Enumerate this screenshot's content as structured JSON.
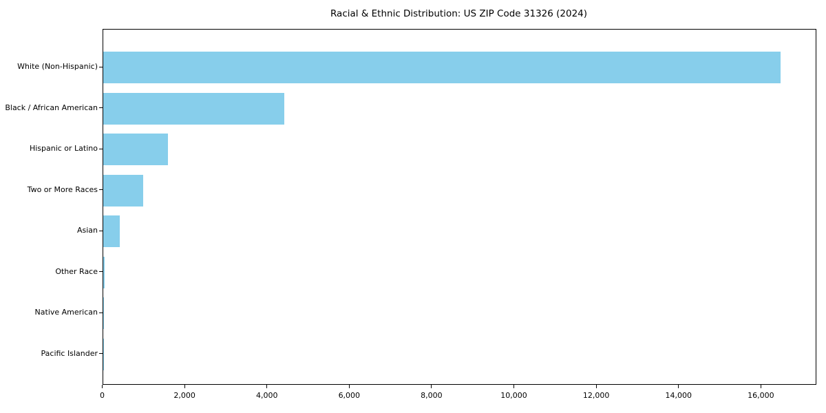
{
  "title": "Racial & Ethnic Distribution: US ZIP Code 31326 (2024)",
  "colors": {
    "bar": "#87CEEB",
    "spine": "#000000",
    "text": "#000000",
    "background": "#ffffff"
  },
  "chart_data": {
    "type": "bar",
    "orientation": "horizontal",
    "title": "Racial & Ethnic Distribution: US ZIP Code 31326 (2024)",
    "xlabel": "",
    "ylabel": "",
    "categories": [
      "White (Non-Hispanic)",
      "Black / African American",
      "Hispanic or Latino",
      "Two or More Races",
      "Asian",
      "Other Race",
      "Native American",
      "Pacific Islander"
    ],
    "values": [
      16500,
      4420,
      1580,
      980,
      410,
      50,
      15,
      4
    ],
    "xlim": [
      0,
      17340
    ],
    "x_ticks": [
      0,
      2000,
      4000,
      6000,
      8000,
      10000,
      12000,
      14000,
      16000
    ],
    "x_tick_labels": [
      "0",
      "2,000",
      "4,000",
      "6,000",
      "8,000",
      "10,000",
      "12,000",
      "14,000",
      "16,000"
    ],
    "bar_color": "#87CEEB",
    "grid": false,
    "legend": false
  }
}
